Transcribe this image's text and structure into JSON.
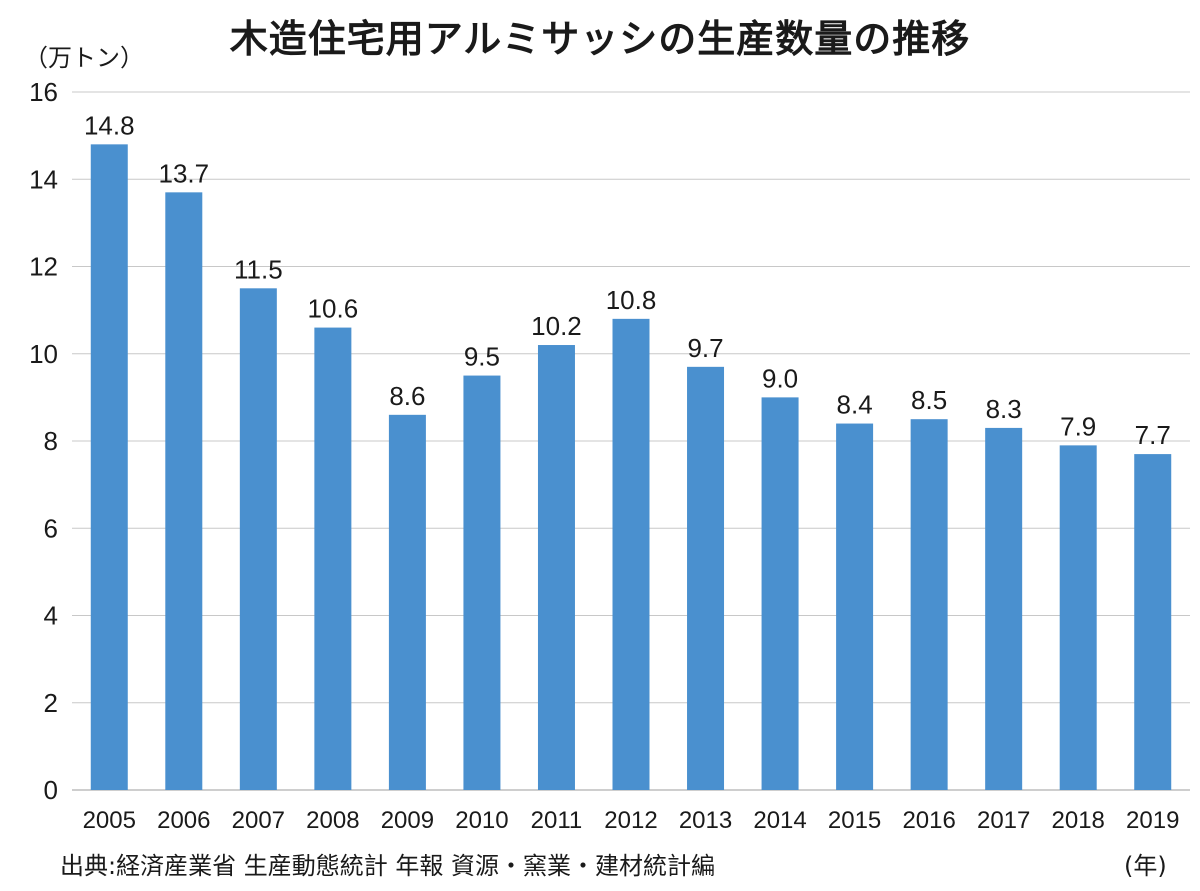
{
  "chart_data": {
    "type": "bar",
    "title": "木造住宅用アルミサッシの生産数量の推移",
    "ylabel": "（万トン）",
    "xlabel": "(年)",
    "categories": [
      "2005",
      "2006",
      "2007",
      "2008",
      "2009",
      "2010",
      "2011",
      "2012",
      "2013",
      "2014",
      "2015",
      "2016",
      "2017",
      "2018",
      "2019"
    ],
    "values": [
      14.8,
      13.7,
      11.5,
      10.6,
      8.6,
      9.5,
      10.2,
      10.8,
      9.7,
      9.0,
      8.4,
      8.5,
      8.3,
      7.9,
      7.7
    ],
    "data_labels": [
      "14.8",
      "13.7",
      "11.5",
      "10.6",
      "8.6",
      "9.5",
      "10.2",
      "10.8",
      "9.7",
      "9.0",
      "8.4",
      "8.5",
      "8.3",
      "7.9",
      "7.7"
    ],
    "ylim": [
      0,
      16
    ],
    "yticks": [
      "0",
      "2",
      "4",
      "6",
      "8",
      "10",
      "12",
      "14",
      "16"
    ],
    "grid": true,
    "bar_color": "#4a90cf",
    "source": "出典:経済産業省 生産動態統計 年報 資源・窯業・建材統計編"
  }
}
